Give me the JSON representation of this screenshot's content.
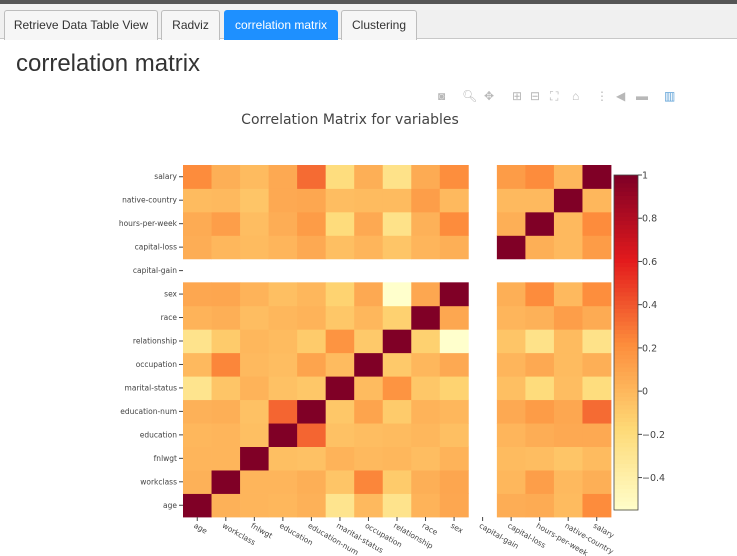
{
  "tabs": [
    {
      "label": "Retrieve Data Table View"
    },
    {
      "label": "Radviz"
    },
    {
      "label": "correlation matrix",
      "active": true
    },
    {
      "label": "Clustering"
    }
  ],
  "page": {
    "title": "correlation matrix"
  },
  "colors": {
    "accent": "#1e90ff",
    "cmap_low": "#ffffcc",
    "cmap_high": "#800026"
  },
  "modebar": {
    "icons": [
      "camera-icon",
      "zoom-icon",
      "pan-icon",
      "zoom-in-icon",
      "zoom-out-icon",
      "autoscale-icon",
      "home-icon",
      "spike-lines-icon",
      "hover-closest-icon",
      "hover-compare-icon",
      "plotly-logo-icon"
    ]
  },
  "chart_data": {
    "type": "heatmap",
    "title": "Correlation Matrix for variables",
    "variables": [
      "age",
      "workclass",
      "fnlwgt",
      "education",
      "education-num",
      "marital-status",
      "occupation",
      "relationship",
      "race",
      "sex",
      "capital-gain",
      "capital-loss",
      "hours-per-week",
      "native-country",
      "salary"
    ],
    "colorbar": {
      "range": [
        -0.55,
        1
      ],
      "ticks": [
        "1",
        "0.8",
        "0.6",
        "0.4",
        "0.2",
        "0",
        "−0.2",
        "−0.4"
      ]
    },
    "z": [
      [
        1,
        0.04,
        0.02,
        0.01,
        0.04,
        -0.27,
        0.0,
        -0.26,
        0.03,
        0.09,
        null,
        0.06,
        0.07,
        -0.01,
        0.23
      ],
      [
        0.04,
        1,
        0.02,
        0.02,
        0.05,
        -0.06,
        0.25,
        -0.09,
        0.05,
        0.1,
        null,
        0.01,
        0.14,
        0.0,
        0.05
      ],
      [
        0.02,
        0.02,
        1,
        -0.03,
        -0.04,
        0.03,
        0.0,
        0.01,
        -0.02,
        0.03,
        null,
        -0.01,
        -0.02,
        -0.06,
        -0.01
      ],
      [
        0.01,
        0.02,
        -0.03,
        1,
        0.36,
        -0.04,
        -0.02,
        -0.01,
        0.01,
        -0.03,
        null,
        0.02,
        0.06,
        0.08,
        0.08
      ],
      [
        0.04,
        0.05,
        -0.04,
        0.36,
        1,
        -0.07,
        0.11,
        -0.09,
        0.03,
        0.01,
        null,
        0.08,
        0.15,
        0.09,
        0.34
      ],
      [
        -0.27,
        -0.06,
        0.03,
        -0.04,
        -0.07,
        1,
        -0.01,
        0.19,
        -0.07,
        -0.13,
        null,
        -0.03,
        -0.19,
        -0.02,
        -0.2
      ],
      [
        0.0,
        0.25,
        0.0,
        -0.02,
        0.11,
        -0.01,
        1,
        -0.08,
        0.01,
        0.08,
        null,
        0.02,
        0.08,
        -0.01,
        0.05
      ],
      [
        -0.26,
        -0.09,
        0.01,
        -0.01,
        -0.09,
        0.19,
        -0.08,
        1,
        -0.12,
        -0.58,
        null,
        -0.06,
        -0.25,
        -0.01,
        -0.25
      ],
      [
        0.03,
        0.05,
        -0.02,
        0.01,
        0.03,
        -0.07,
        0.01,
        -0.12,
        1,
        0.09,
        null,
        0.02,
        0.04,
        0.14,
        0.07
      ],
      [
        0.09,
        0.1,
        0.03,
        -0.03,
        0.01,
        -0.13,
        0.08,
        -0.58,
        0.09,
        1,
        null,
        0.05,
        0.23,
        0.0,
        0.22
      ],
      [
        null,
        null,
        null,
        null,
        null,
        null,
        null,
        null,
        null,
        null,
        null,
        null,
        null,
        null,
        null
      ],
      [
        0.06,
        0.01,
        -0.01,
        0.02,
        0.08,
        -0.03,
        0.02,
        -0.06,
        0.02,
        0.05,
        null,
        1,
        0.05,
        0.0,
        0.15
      ],
      [
        0.07,
        0.14,
        -0.02,
        0.06,
        0.15,
        -0.19,
        0.08,
        -0.25,
        0.04,
        0.23,
        null,
        0.05,
        1,
        0.0,
        0.23
      ],
      [
        -0.01,
        0.0,
        -0.06,
        0.08,
        0.09,
        -0.02,
        -0.01,
        -0.01,
        0.14,
        0.0,
        null,
        0.0,
        0.0,
        1,
        0.01
      ],
      [
        0.23,
        0.05,
        -0.01,
        0.08,
        0.34,
        -0.2,
        0.05,
        -0.25,
        0.07,
        0.22,
        null,
        0.15,
        0.23,
        0.01,
        1
      ]
    ]
  }
}
